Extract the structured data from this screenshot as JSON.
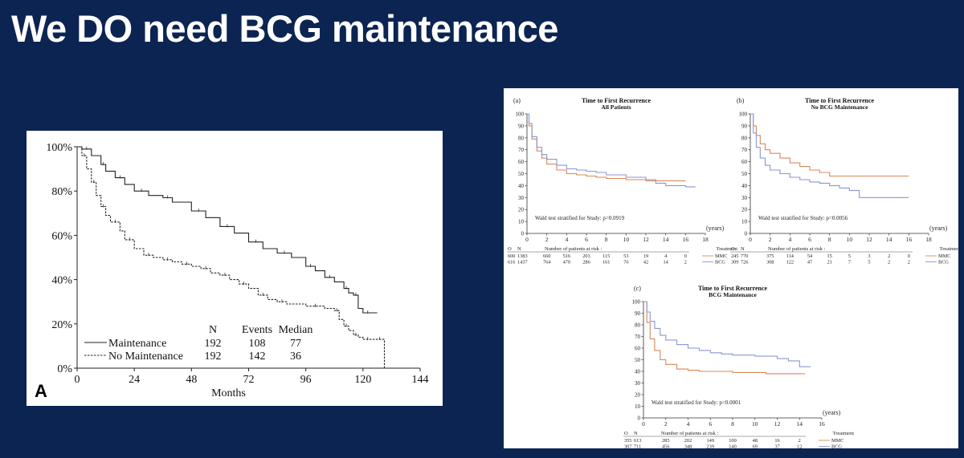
{
  "slide": {
    "title": "We DO need BCG maintenance"
  },
  "colors": {
    "background": "#0c2452",
    "mmc": "#d9875a",
    "bcg": "#8c96d2"
  },
  "chart_data": [
    {
      "id": "A",
      "type": "line",
      "panel_label": "A",
      "xlabel": "Months",
      "xticks": [
        0,
        24,
        48,
        72,
        96,
        120,
        144
      ],
      "yticks": [
        0,
        20,
        40,
        60,
        80,
        100
      ],
      "ytick_labels": [
        "0%",
        "20%",
        "40%",
        "60%",
        "80%",
        "100%"
      ],
      "xlim": [
        0,
        144
      ],
      "ylim": [
        0,
        100
      ],
      "legend": {
        "position": "bottom-left",
        "headers": [
          "N",
          "Events",
          "Median"
        ],
        "rows": [
          {
            "name": "Maintenance",
            "n": "192",
            "events": "108",
            "median": "77"
          },
          {
            "name": "No Maintenance",
            "n": "192",
            "events": "142",
            "median": "36"
          }
        ]
      },
      "series": [
        {
          "name": "Maintenance",
          "style": "solid",
          "x": [
            0,
            2,
            6,
            10,
            12,
            16,
            20,
            24,
            30,
            36,
            40,
            48,
            54,
            60,
            66,
            72,
            78,
            84,
            90,
            96,
            100,
            104,
            108,
            112,
            114,
            116,
            118,
            120,
            124,
            126
          ],
          "y": [
            100,
            99,
            96,
            92,
            89,
            86,
            83,
            80,
            78,
            77,
            75,
            71,
            68,
            64,
            61,
            57,
            54,
            52,
            50,
            46,
            44,
            41,
            39,
            36,
            34,
            33,
            27,
            25,
            25,
            25
          ]
        },
        {
          "name": "No Maintenance",
          "style": "dashed",
          "x": [
            0,
            2,
            4,
            6,
            8,
            10,
            12,
            14,
            18,
            20,
            24,
            28,
            32,
            36,
            40,
            44,
            48,
            52,
            56,
            60,
            64,
            68,
            72,
            76,
            80,
            84,
            88,
            96,
            104,
            108,
            110,
            112,
            114,
            116,
            118,
            120,
            124,
            126,
            128,
            129
          ],
          "y": [
            100,
            96,
            90,
            84,
            78,
            73,
            69,
            66,
            62,
            58,
            54,
            51,
            50,
            49,
            48,
            47,
            46,
            45,
            43,
            42,
            40,
            38,
            36,
            33,
            31,
            30,
            29,
            28,
            27,
            26,
            22,
            19,
            17,
            15,
            14,
            13,
            13,
            13,
            13,
            0
          ]
        }
      ]
    },
    {
      "id": "a",
      "type": "line",
      "panel_label": "(a)",
      "title": "Time to First Recurrence",
      "subtitle": "All Patients",
      "x_unit": "(years)",
      "xticks": [
        0,
        2,
        4,
        6,
        8,
        10,
        12,
        14,
        16,
        18
      ],
      "yticks": [
        0,
        10,
        20,
        30,
        40,
        50,
        60,
        70,
        80,
        90,
        100
      ],
      "xlim": [
        0,
        18
      ],
      "ylim": [
        0,
        100
      ],
      "annotation": "Wald test stratified for Study: p=0.0919",
      "risk_table": {
        "headers": [
          "O",
          "N"
        ],
        "title": "Number of patients at risk :",
        "treatment_header": "Treatment",
        "rows": [
          {
            "o": "600",
            "n": "1383",
            "counts": [
              "660",
              "516",
              "203",
              "115",
              "53",
              "19",
              "4",
              "0"
            ],
            "treatment": "MMC"
          },
          {
            "o": "616",
            "n": "1437",
            "counts": [
              "764",
              "470",
              "286",
              "161",
              "76",
              "42",
              "14",
              "2"
            ],
            "treatment": "BCG"
          }
        ]
      },
      "series": [
        {
          "name": "MMC",
          "x": [
            0,
            0.2,
            0.5,
            1,
            1.5,
            2,
            3,
            4,
            5,
            6,
            7,
            8,
            10,
            12,
            14,
            16
          ],
          "y": [
            100,
            90,
            79,
            69,
            63,
            58,
            53,
            50,
            49,
            48,
            47,
            46,
            45,
            44,
            44,
            44
          ]
        },
        {
          "name": "BCG",
          "x": [
            0,
            0.2,
            0.5,
            1,
            1.5,
            2,
            3,
            4,
            5,
            6,
            7,
            8,
            10,
            12,
            13,
            14,
            16,
            17
          ],
          "y": [
            100,
            92,
            81,
            72,
            66,
            62,
            57,
            54,
            53,
            52,
            51,
            49,
            47,
            45,
            42,
            40,
            39,
            39
          ]
        }
      ]
    },
    {
      "id": "b",
      "type": "line",
      "panel_label": "(b)",
      "title": "Time to First Recurrence",
      "subtitle": "No BCG Maintenance",
      "x_unit": "(years)",
      "xticks": [
        0,
        2,
        4,
        6,
        8,
        10,
        12,
        14,
        16,
        18
      ],
      "yticks": [
        0,
        10,
        20,
        30,
        40,
        50,
        60,
        70,
        80,
        90,
        100
      ],
      "xlim": [
        0,
        18
      ],
      "ylim": [
        0,
        100
      ],
      "annotation": "Wald test stratified for Study: p=0.0056",
      "risk_table": {
        "headers": [
          "O",
          "N"
        ],
        "title": "Number of patients at risk :",
        "treatment_header": "Treatment",
        "rows": [
          {
            "o": "245",
            "n": "770",
            "counts": [
              "375",
              "114",
              "54",
              "15",
              "5",
              "3",
              "2",
              "0"
            ],
            "treatment": "MMC"
          },
          {
            "o": "309",
            "n": "726",
            "counts": [
              "308",
              "122",
              "47",
              "21",
              "7",
              "5",
              "2",
              "2"
            ],
            "treatment": "BCG"
          }
        ]
      },
      "series": [
        {
          "name": "MMC",
          "x": [
            0,
            0.3,
            0.6,
            1,
            1.5,
            2,
            3,
            4,
            5,
            6,
            7,
            8,
            10,
            14,
            16
          ],
          "y": [
            100,
            90,
            82,
            75,
            70,
            67,
            63,
            59,
            56,
            53,
            51,
            48,
            48,
            48,
            48
          ]
        },
        {
          "name": "BCG",
          "x": [
            0,
            0.3,
            0.6,
            1,
            1.5,
            2,
            3,
            4,
            5,
            6,
            7,
            8,
            9,
            10,
            11,
            12,
            14,
            16
          ],
          "y": [
            100,
            84,
            72,
            63,
            57,
            53,
            50,
            47,
            45,
            43,
            42,
            40,
            38,
            36,
            30,
            30,
            30,
            30
          ]
        }
      ]
    },
    {
      "id": "c",
      "type": "line",
      "panel_label": "(c)",
      "title": "Time to First Recurrence",
      "subtitle": "BCG Maintenance",
      "x_unit": "(years)",
      "xticks": [
        0,
        2,
        4,
        6,
        8,
        10,
        12,
        14,
        16
      ],
      "yticks": [
        0,
        10,
        20,
        30,
        40,
        50,
        60,
        70,
        80,
        90,
        100
      ],
      "xlim": [
        0,
        16
      ],
      "ylim": [
        0,
        100
      ],
      "annotation": "Wald test stratified for Study: p<0.0001",
      "risk_table": {
        "headers": [
          "O",
          "N"
        ],
        "title": "Number of patients at risk :",
        "treatment_header": "Treatment",
        "rows": [
          {
            "o": "355",
            "n": "613",
            "counts": [
              "285",
              "202",
              "149",
              "100",
              "48",
              "16",
              "2"
            ],
            "treatment": "MMC"
          },
          {
            "o": "307",
            "n": "711",
            "counts": [
              "456",
              "348",
              "239",
              "140",
              "69",
              "37",
              "12"
            ],
            "treatment": "BCG"
          }
        ]
      },
      "series": [
        {
          "name": "MMC",
          "x": [
            0,
            0.3,
            0.6,
            1,
            1.5,
            2,
            3,
            4,
            5,
            6,
            8,
            10,
            11,
            12,
            14,
            14.5
          ],
          "y": [
            100,
            82,
            68,
            58,
            50,
            46,
            42,
            41,
            40,
            40,
            39,
            39,
            38,
            38,
            38,
            38
          ]
        },
        {
          "name": "BCG",
          "x": [
            0,
            0.3,
            0.6,
            1,
            1.5,
            2,
            3,
            4,
            5,
            6,
            7,
            8,
            10,
            12,
            13,
            14,
            15
          ],
          "y": [
            100,
            91,
            83,
            77,
            71,
            67,
            63,
            60,
            58,
            56,
            55,
            54,
            53,
            51,
            49,
            44,
            44
          ]
        }
      ]
    }
  ]
}
